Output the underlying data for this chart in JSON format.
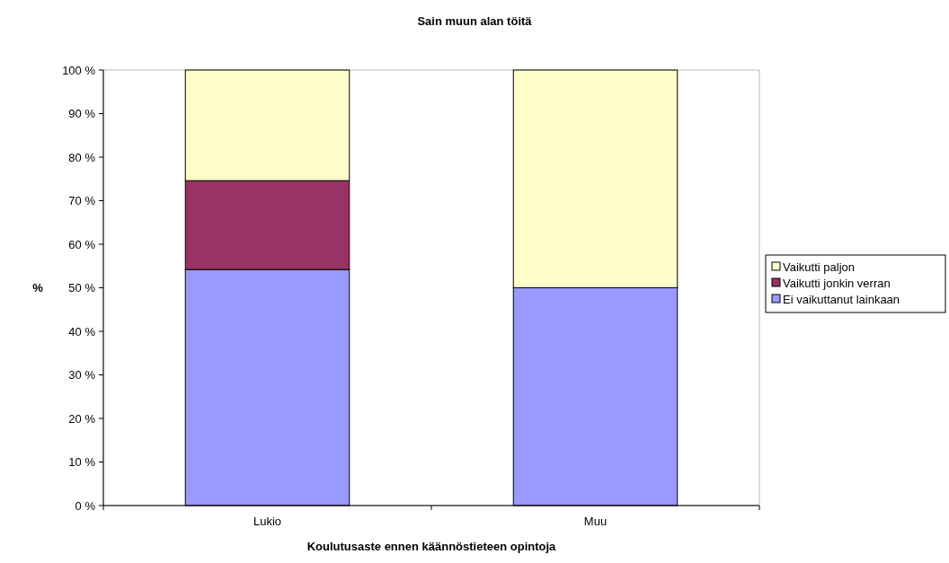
{
  "chart_data": {
    "type": "bar",
    "title": "Sain muun alan töitä",
    "xlabel": "Koulutusaste ennen käännöstieteen opintoja",
    "ylabel": "%",
    "categories": [
      "Lukio",
      "Muu"
    ],
    "stacked": true,
    "series": [
      {
        "name": "Ei vaikuttanut lainkaan",
        "color": "#9999ff",
        "values": [
          54.2,
          50
        ]
      },
      {
        "name": "Vaikutti jonkin verran",
        "color": "#993366",
        "values": [
          20.4,
          0
        ]
      },
      {
        "name": "Vaikutti paljon",
        "color": "#ffffcc",
        "values": [
          25.4,
          50
        ]
      }
    ],
    "ylim": [
      0,
      100
    ],
    "yticks": [
      {
        "value": 0,
        "label": "0 %"
      },
      {
        "value": 10,
        "label": "10 %"
      },
      {
        "value": 20,
        "label": "20 %"
      },
      {
        "value": 30,
        "label": "30 %"
      },
      {
        "value": 40,
        "label": "40 %"
      },
      {
        "value": 50,
        "label": "50 %"
      },
      {
        "value": 60,
        "label": "60 %"
      },
      {
        "value": 70,
        "label": "70 %"
      },
      {
        "value": 80,
        "label": "80 %"
      },
      {
        "value": 90,
        "label": "90 %"
      },
      {
        "value": 100,
        "label": "100 %"
      }
    ],
    "legend": "right",
    "grid": false
  }
}
